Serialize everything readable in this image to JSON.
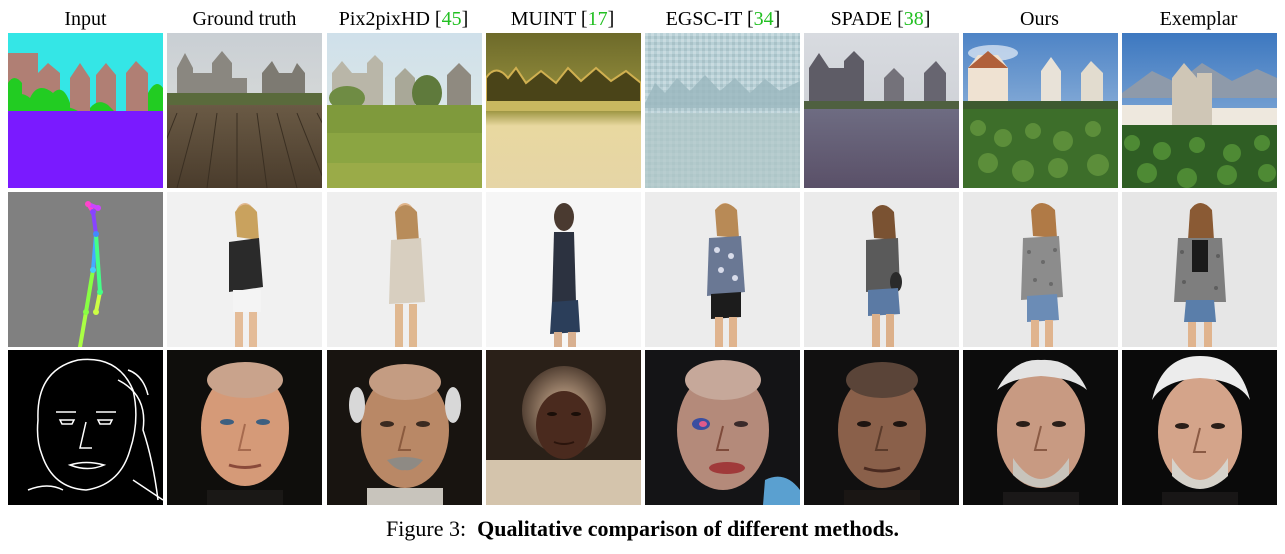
{
  "columns": [
    {
      "label": "Input",
      "ref": ""
    },
    {
      "label": "Ground truth",
      "ref": ""
    },
    {
      "label": "Pix2pixHD [",
      "ref": "45",
      "close": "]"
    },
    {
      "label": "MUINT [",
      "ref": "17",
      "close": "]"
    },
    {
      "label": "EGSC-IT [",
      "ref": "34",
      "close": "]"
    },
    {
      "label": "SPADE [",
      "ref": "38",
      "close": "]"
    },
    {
      "label": "Ours",
      "ref": ""
    },
    {
      "label": "Exemplar",
      "ref": ""
    }
  ],
  "caption": {
    "prefix": "Figure 3:",
    "text": "Qualitative comparison of different methods."
  },
  "colors": {
    "reference_link": "#22c022",
    "seg_sky": "#34e6e6",
    "seg_building": "#b07f74",
    "seg_tree": "#22cc22",
    "seg_ground": "#7a1aff",
    "pose_bg": "#808080",
    "edge_bg": "#000000"
  }
}
